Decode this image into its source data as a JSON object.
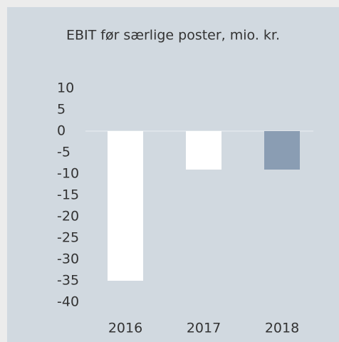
{
  "chart_data": {
    "type": "bar",
    "title": "EBIT før særlige poster, mio. kr.",
    "categories": [
      "2016",
      "2017",
      "2018"
    ],
    "values": [
      -35,
      -9,
      -9
    ],
    "colors": [
      "#ffffff",
      "#ffffff",
      "#8a9db3"
    ],
    "ylim": [
      -40,
      10
    ],
    "yticks": [
      -40,
      -35,
      -30,
      -25,
      -20,
      -15,
      -10,
      -5,
      0,
      5,
      10
    ],
    "grid": false
  }
}
